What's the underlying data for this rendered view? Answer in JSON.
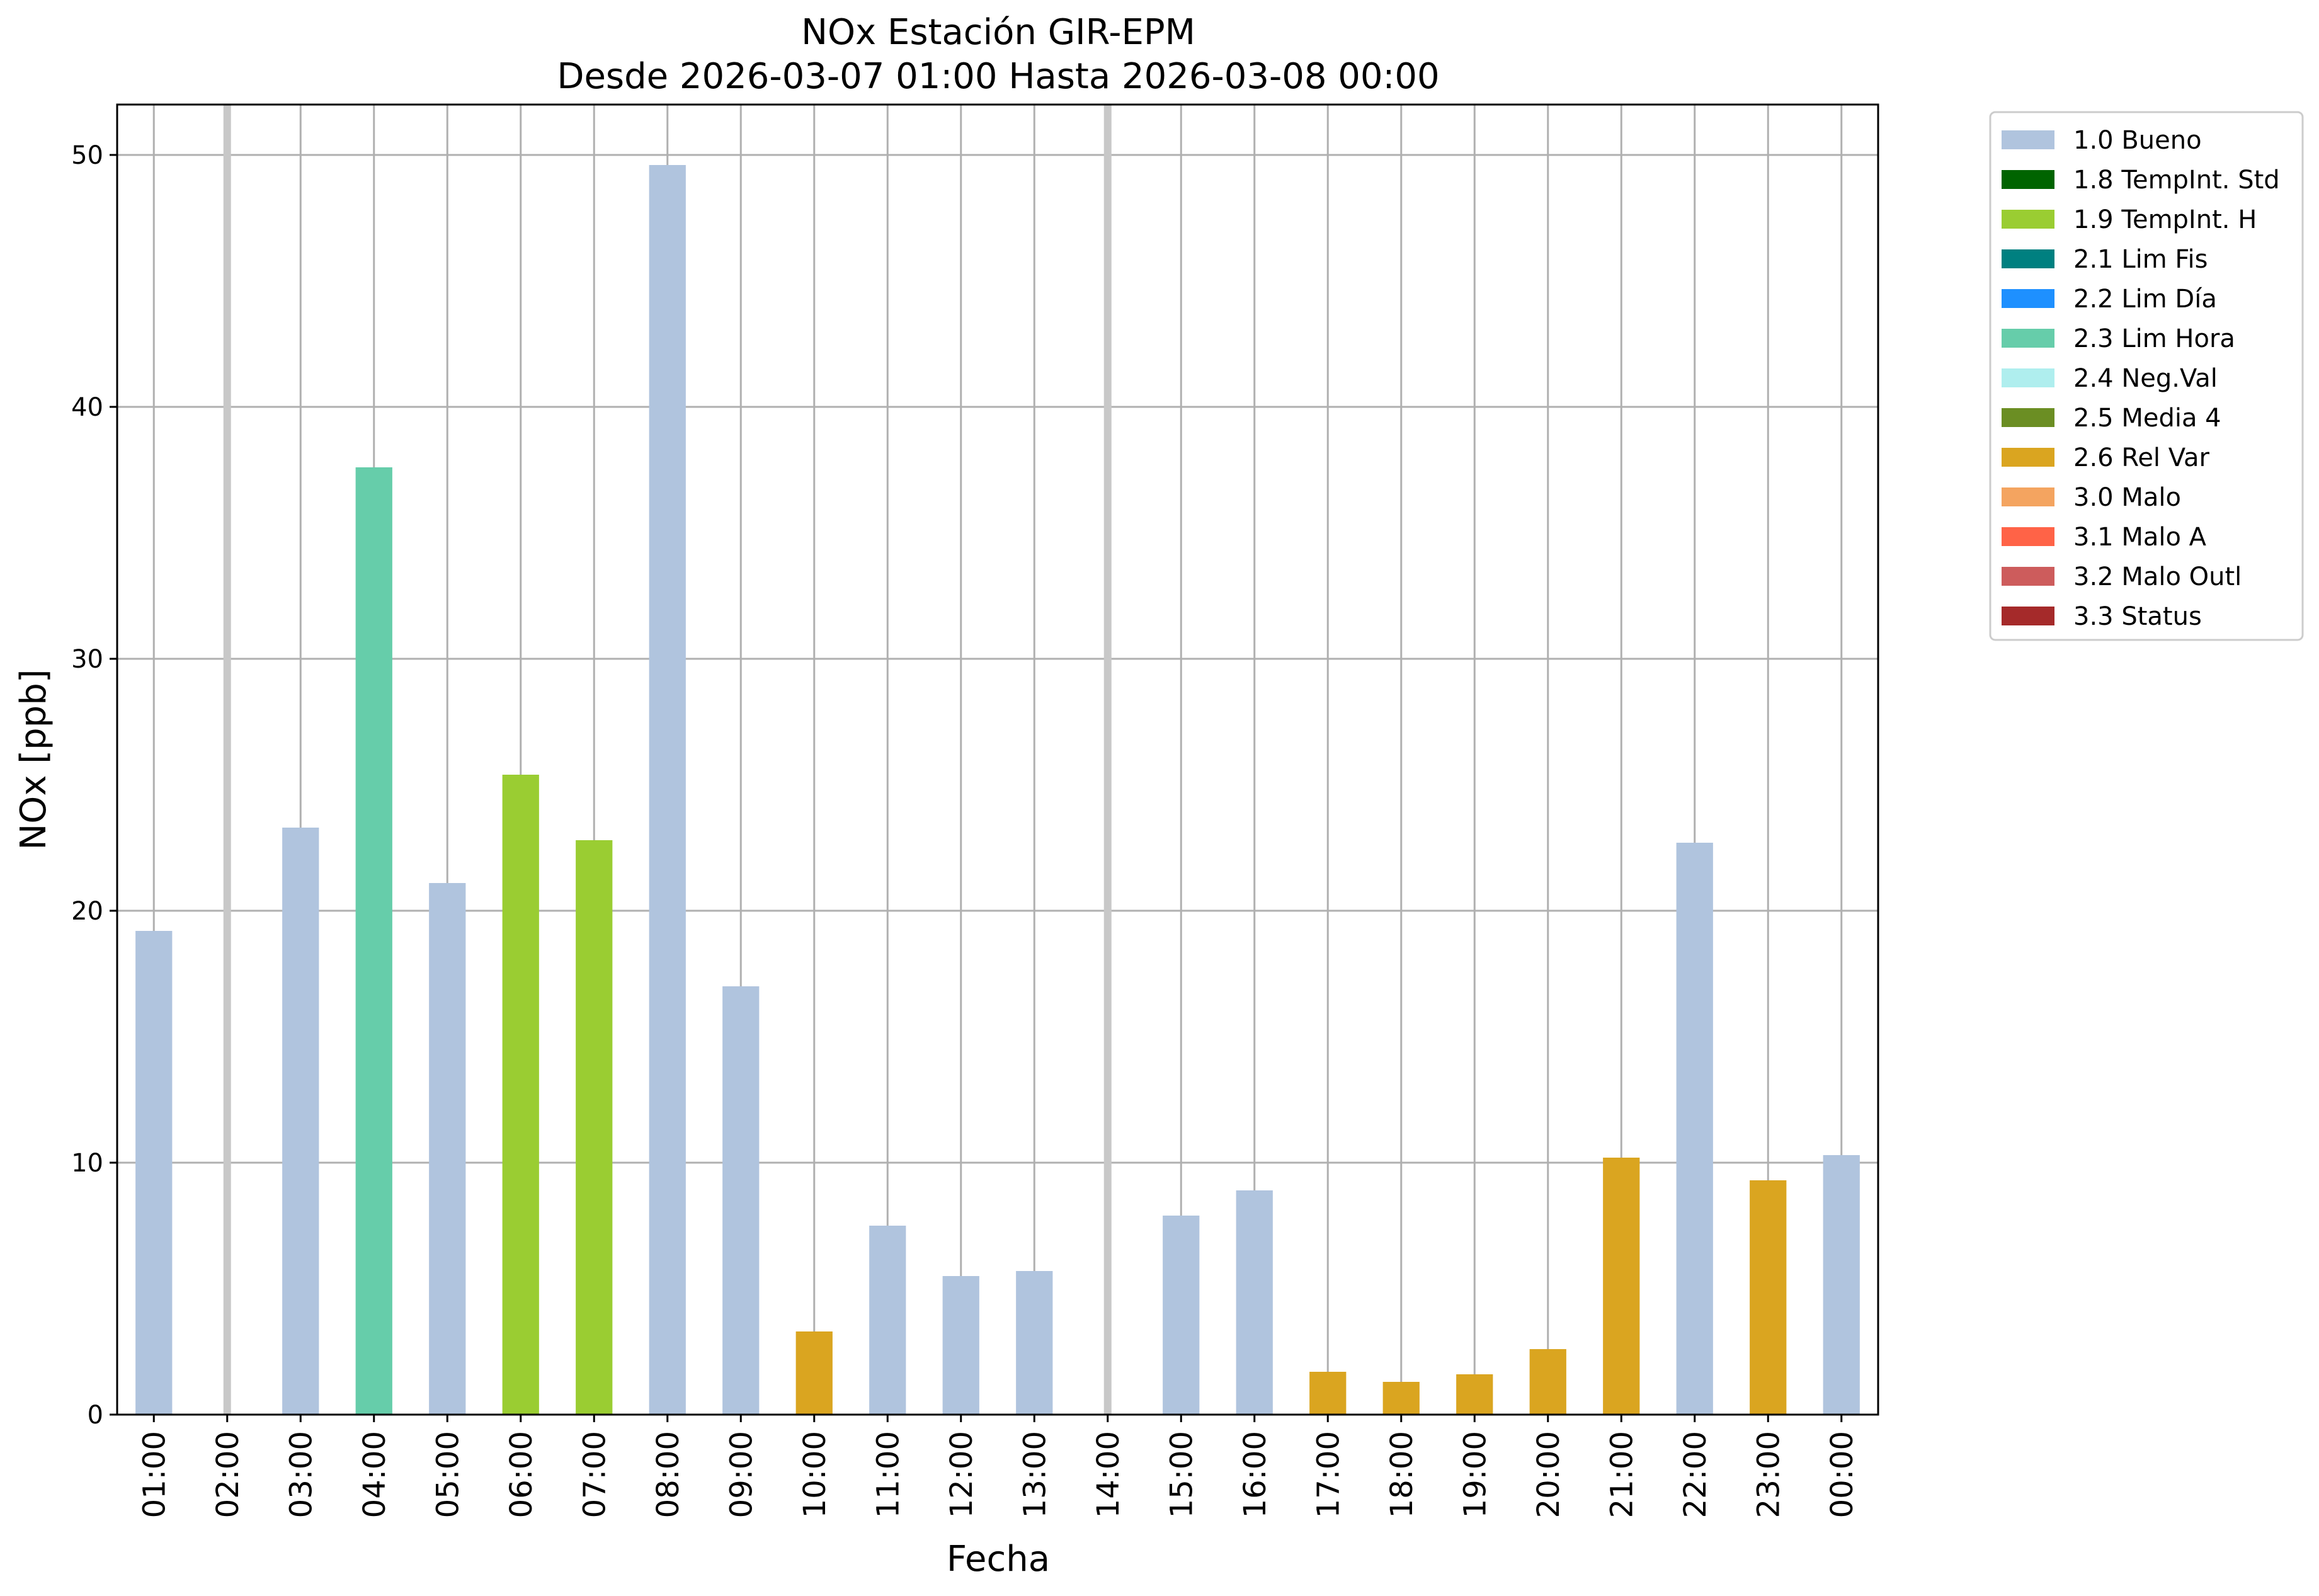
{
  "chart_data": {
    "type": "bar",
    "title": "NOx Estación GIR-EPM",
    "subtitle": "Desde 2026-03-07 01:00 Hasta 2026-03-08 00:00",
    "xlabel": "Fecha",
    "ylabel": "NOx [ppb]",
    "ylim": [
      0,
      52
    ],
    "yticks": [
      0,
      10,
      20,
      30,
      40,
      50
    ],
    "grid": true,
    "legend_position": "outside-top-right",
    "categories": [
      "01:00",
      "02:00",
      "03:00",
      "04:00",
      "05:00",
      "06:00",
      "07:00",
      "08:00",
      "09:00",
      "10:00",
      "11:00",
      "12:00",
      "13:00",
      "14:00",
      "15:00",
      "16:00",
      "17:00",
      "18:00",
      "19:00",
      "20:00",
      "21:00",
      "22:00",
      "23:00",
      "00:00"
    ],
    "values": [
      19.2,
      null,
      23.3,
      37.6,
      21.1,
      25.4,
      22.8,
      49.6,
      17.0,
      3.3,
      7.5,
      5.5,
      5.7,
      null,
      7.9,
      8.9,
      1.7,
      1.3,
      1.6,
      2.6,
      10.2,
      22.7,
      9.3,
      10.3
    ],
    "flags": [
      "1.0 Bueno",
      null,
      "1.0 Bueno",
      "2.3 Lim Hora",
      "1.0 Bueno",
      "1.9 TempInt. H",
      "1.9 TempInt. H",
      "1.0 Bueno",
      "1.0 Bueno",
      "2.6 Rel Var",
      "1.0 Bueno",
      "1.0 Bueno",
      "1.0 Bueno",
      null,
      "1.0 Bueno",
      "1.0 Bueno",
      "2.6 Rel Var",
      "2.6 Rel Var",
      "2.6 Rel Var",
      "2.6 Rel Var",
      "2.6 Rel Var",
      "1.0 Bueno",
      "2.6 Rel Var",
      "1.0 Bueno"
    ],
    "missing_markers": [
      "02:00",
      "14:00"
    ],
    "legend": [
      {
        "label": "1.0 Bueno",
        "color": "#b0c4de"
      },
      {
        "label": "1.8 TempInt. Std",
        "color": "#006400"
      },
      {
        "label": "1.9 TempInt. H",
        "color": "#9acd32"
      },
      {
        "label": "2.1 Lim Fis",
        "color": "#008080"
      },
      {
        "label": "2.2 Lim Día",
        "color": "#1e90ff"
      },
      {
        "label": "2.3 Lim Hora",
        "color": "#66cdaa"
      },
      {
        "label": "2.4 Neg.Val",
        "color": "#afeeee"
      },
      {
        "label": "2.5 Media 4",
        "color": "#6b8e23"
      },
      {
        "label": "2.6 Rel Var",
        "color": "#daa520"
      },
      {
        "label": "3.0 Malo",
        "color": "#f4a460"
      },
      {
        "label": "3.1 Malo A",
        "color": "#ff6347"
      },
      {
        "label": "3.2 Malo Outl",
        "color": "#cd5c5c"
      },
      {
        "label": "3.3 Status",
        "color": "#a52a2a"
      }
    ]
  }
}
